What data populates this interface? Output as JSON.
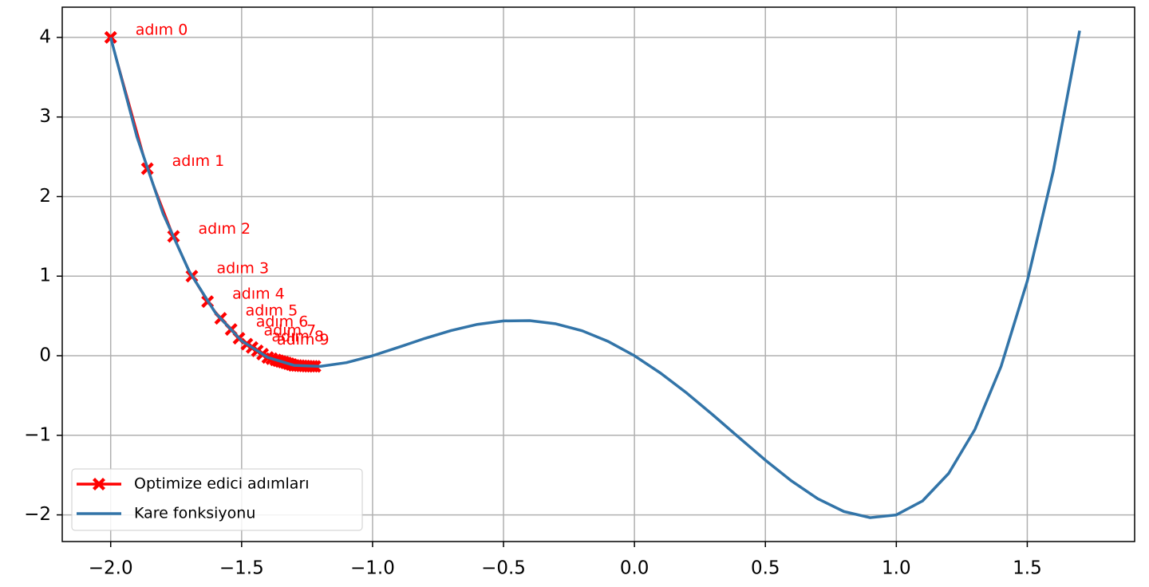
{
  "chart_data": {
    "type": "line",
    "xlim": [
      -2.185,
      1.91
    ],
    "ylim": [
      -2.335,
      4.38
    ],
    "xticks": [
      {
        "value": -2,
        "label": "−2.0"
      },
      {
        "value": -1.5,
        "label": "−1.5"
      },
      {
        "value": -1,
        "label": "−1.0"
      },
      {
        "value": -0.5,
        "label": "−0.5"
      },
      {
        "value": 0,
        "label": "0.0"
      },
      {
        "value": 0.5,
        "label": "0.5"
      },
      {
        "value": 1,
        "label": "1.0"
      },
      {
        "value": 1.5,
        "label": "1.5"
      }
    ],
    "yticks": [
      {
        "value": -2,
        "label": "−2"
      },
      {
        "value": -1,
        "label": "−1"
      },
      0,
      1,
      2,
      3,
      4
    ],
    "grid": true,
    "legend": "lower-left",
    "series": [
      {
        "name": "Optimize edici adımları",
        "color": "#ff0000",
        "marker": "X",
        "x": [
          -2.0,
          -1.86,
          -1.76,
          -1.69,
          -1.63,
          -1.58,
          -1.54,
          -1.51,
          -1.48,
          -1.46,
          -1.44,
          -1.42,
          -1.4,
          -1.385,
          -1.37,
          -1.36,
          -1.35,
          -1.34,
          -1.33,
          -1.32,
          -1.31,
          -1.3,
          -1.29,
          -1.28,
          -1.27,
          -1.26,
          -1.25,
          -1.24,
          -1.23,
          -1.22
        ],
        "values": [
          4.0,
          2.35,
          1.5,
          1.0,
          0.68,
          0.47,
          0.33,
          0.22,
          0.146,
          0.104,
          0.062,
          0.02,
          -0.022,
          -0.037,
          -0.052,
          -0.062,
          -0.072,
          -0.08,
          -0.09,
          -0.1,
          -0.11,
          -0.121,
          -0.123,
          -0.125,
          -0.127,
          -0.129,
          -0.131,
          -0.132,
          -0.133,
          -0.134
        ]
      },
      {
        "name": "Kare fonksiyonu",
        "color": "#3274a8",
        "x": [
          -2.0,
          -1.9,
          -1.8,
          -1.7,
          -1.6,
          -1.5,
          -1.4,
          -1.3,
          -1.2,
          -1.1,
          -1.0,
          -0.9,
          -0.8,
          -0.7,
          -0.6,
          -0.5,
          -0.4,
          -0.3,
          -0.2,
          -0.1,
          0,
          0.1,
          0.2,
          0.3,
          0.4,
          0.5,
          0.6,
          0.7,
          0.8,
          0.9,
          1.0,
          1.1,
          1.2,
          1.3,
          1.4,
          1.5,
          1.6,
          1.7
        ],
        "values": [
          4.0,
          2.753,
          1.786,
          1.059,
          0.538,
          0.1875,
          -0.022,
          -0.121,
          -0.134,
          -0.087,
          0,
          0.107,
          0.218,
          0.317,
          0.394,
          0.4375,
          0.4416,
          0.401,
          0.314,
          0.179,
          0,
          -0.219,
          -0.47,
          -0.745,
          -1.03,
          -1.3125,
          -1.574,
          -1.797,
          -1.958,
          -2.035,
          -2,
          -1.825,
          -1.478,
          -0.927,
          -0.134,
          0.9375,
          2.33,
          4.085
        ]
      }
    ],
    "annotations": [
      "adım 0",
      "adım 1",
      "adım 2",
      "adım 3",
      "adım 4",
      "adım 5",
      "adım 6",
      "adım 7",
      "adım 8",
      "adım 9"
    ]
  }
}
